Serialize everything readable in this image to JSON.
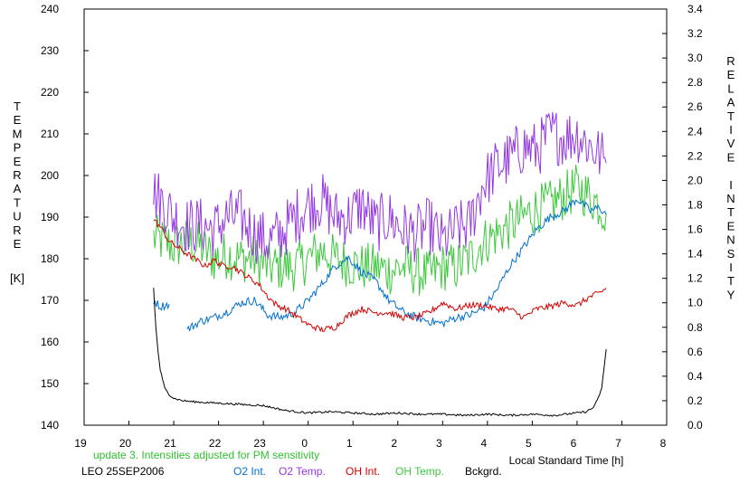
{
  "chart_data": {
    "type": "line",
    "xlabel": "Local Standard Time [h]",
    "ylabel_left": "TEMPERATURE [K]",
    "ylabel_left_letters": [
      "T",
      "E",
      "M",
      "P",
      "E",
      "R",
      "A",
      "T",
      "U",
      "R",
      "E"
    ],
    "ylabel_left_unit": "[K]",
    "ylabel_right": "RELATIVE INTENSITY",
    "ylabel_right_letters": [
      "R",
      "E",
      "L",
      "A",
      "T",
      "I",
      "V",
      "E",
      "",
      "I",
      "N",
      "T",
      "E",
      "N",
      "S",
      "I",
      "T",
      "Y"
    ],
    "x_ticks": [
      "19",
      "20",
      "21",
      "22",
      "23",
      "0",
      "1",
      "2",
      "3",
      "4",
      "5",
      "6",
      "7",
      "8"
    ],
    "xlim": [
      19,
      32
    ],
    "ylim_left": [
      140,
      240
    ],
    "y_ticks_left": [
      "140",
      "150",
      "160",
      "170",
      "180",
      "190",
      "200",
      "210",
      "220",
      "230",
      "240"
    ],
    "ylim_right": [
      0.0,
      3.4
    ],
    "y_ticks_right": [
      "0.0",
      "0.2",
      "0.4",
      "0.6",
      "0.8",
      "1.0",
      "1.2",
      "1.4",
      "1.6",
      "1.8",
      "2.0",
      "2.2",
      "2.4",
      "2.6",
      "2.8",
      "3.0",
      "3.2",
      "3.4"
    ],
    "grid": false,
    "note": "update 3. Intensities adjusted for PM sensitivity",
    "station": "LEO 25SEP2006",
    "series": [
      {
        "name": "O2 Int.",
        "color": "#0070d0",
        "axis": "right",
        "noise": 0.035,
        "x": [
          20.55,
          20.7,
          20.9
        ],
        "y": [
          1.02,
          0.97,
          0.99
        ]
      },
      {
        "name": "O2 Int.",
        "color": "#0070d0",
        "axis": "right",
        "noise": 0.035,
        "x": [
          21.3,
          21.6,
          21.9,
          22.2,
          22.5,
          22.8,
          23.1,
          23.4,
          23.7,
          24.0,
          24.3,
          24.6,
          24.9,
          25.2,
          25.5,
          25.8,
          26.1,
          26.4,
          26.7,
          27.0,
          27.3,
          27.6,
          27.9,
          28.2,
          28.5,
          28.8,
          29.1,
          29.4,
          29.7,
          30.0,
          30.3,
          30.5,
          30.65
        ],
        "y": [
          0.78,
          0.85,
          0.88,
          0.93,
          1.0,
          1.02,
          0.9,
          0.88,
          0.92,
          1.02,
          1.15,
          1.3,
          1.37,
          1.25,
          1.18,
          1.02,
          0.93,
          0.88,
          0.85,
          0.83,
          0.88,
          0.9,
          0.95,
          1.1,
          1.3,
          1.45,
          1.6,
          1.7,
          1.75,
          1.85,
          1.75,
          1.78,
          1.72
        ]
      },
      {
        "name": "O2 Temp.",
        "color": "#9438e0",
        "axis": "left",
        "noise": 7,
        "x": [
          20.55,
          20.8,
          21.0,
          21.3,
          21.6,
          21.9,
          22.2,
          22.5,
          22.8,
          23.1,
          23.4,
          23.7,
          24.0,
          24.3,
          24.6,
          24.9,
          25.2,
          25.5,
          25.8,
          26.1,
          26.4,
          26.7,
          27.0,
          27.3,
          27.6,
          27.9,
          28.2,
          28.5,
          28.8,
          29.1,
          29.4,
          29.7,
          30.0,
          30.3,
          30.5,
          30.65
        ],
        "y": [
          196,
          193,
          190,
          188,
          188,
          187,
          190,
          190,
          186,
          184,
          186,
          190,
          193,
          194,
          190,
          190,
          193,
          188,
          190,
          187,
          186,
          188,
          184,
          187,
          188,
          198,
          202,
          204,
          207,
          206,
          210,
          209,
          210,
          207,
          205,
          203
        ]
      },
      {
        "name": "OH Int.",
        "color": "#d40000",
        "axis": "right",
        "noise": 0.025,
        "x": [
          20.55,
          20.7,
          20.9,
          21.1,
          21.3,
          21.5,
          21.7,
          21.9,
          22.1,
          22.3,
          22.5,
          22.7,
          22.9,
          23.1,
          23.3,
          23.5,
          23.7,
          24.0,
          24.3,
          24.6,
          24.9,
          25.2,
          25.5,
          25.8,
          26.1,
          26.4,
          26.7,
          27.0,
          27.3,
          27.6,
          27.9,
          28.2,
          28.5,
          28.8,
          29.1,
          29.4,
          29.7,
          30.0,
          30.3,
          30.5,
          30.65
        ],
        "y": [
          1.68,
          1.62,
          1.5,
          1.45,
          1.4,
          1.35,
          1.3,
          1.35,
          1.3,
          1.3,
          1.25,
          1.2,
          1.15,
          1.05,
          0.98,
          0.95,
          0.9,
          0.82,
          0.78,
          0.8,
          0.9,
          0.95,
          0.92,
          0.92,
          0.88,
          0.88,
          0.92,
          1.0,
          0.95,
          0.98,
          0.98,
          0.95,
          0.95,
          0.88,
          0.95,
          0.97,
          1.0,
          0.98,
          1.05,
          1.08,
          1.12
        ]
      },
      {
        "name": "OH Temp.",
        "color": "#3cc83c",
        "axis": "left",
        "noise": 6,
        "x": [
          20.55,
          20.8,
          21.0,
          21.3,
          21.6,
          21.9,
          22.2,
          22.5,
          22.8,
          23.1,
          23.4,
          23.7,
          24.0,
          24.3,
          24.6,
          24.9,
          25.2,
          25.5,
          25.8,
          26.1,
          26.4,
          26.7,
          27.0,
          27.3,
          27.6,
          27.9,
          28.2,
          28.5,
          28.8,
          29.1,
          29.4,
          29.7,
          30.0,
          30.3,
          30.5,
          30.65
        ],
        "y": [
          185,
          184,
          183,
          184,
          183,
          180,
          181,
          180,
          180,
          178,
          178,
          178,
          180,
          182,
          180,
          179,
          178,
          178,
          177,
          178,
          177,
          176,
          178,
          178,
          180,
          184,
          186,
          188,
          190,
          192,
          193,
          195,
          197,
          195,
          193,
          191
        ]
      },
      {
        "name": "Bckgrd.",
        "color": "#000000",
        "axis": "right",
        "noise": 0.008,
        "x": [
          20.55,
          20.6,
          20.65,
          20.7,
          20.8,
          20.9,
          21.0,
          21.2,
          21.5,
          22.0,
          22.5,
          23.0,
          23.5,
          24.0,
          24.5,
          25.0,
          25.5,
          26.0,
          26.5,
          27.0,
          27.5,
          28.0,
          28.5,
          29.0,
          29.5,
          30.0,
          30.2,
          30.35,
          30.45,
          30.55,
          30.65
        ],
        "y": [
          1.12,
          0.8,
          0.6,
          0.45,
          0.3,
          0.25,
          0.22,
          0.2,
          0.19,
          0.18,
          0.17,
          0.16,
          0.12,
          0.1,
          0.11,
          0.1,
          0.09,
          0.1,
          0.09,
          0.09,
          0.08,
          0.09,
          0.08,
          0.09,
          0.08,
          0.1,
          0.11,
          0.14,
          0.2,
          0.3,
          0.62
        ]
      }
    ]
  }
}
